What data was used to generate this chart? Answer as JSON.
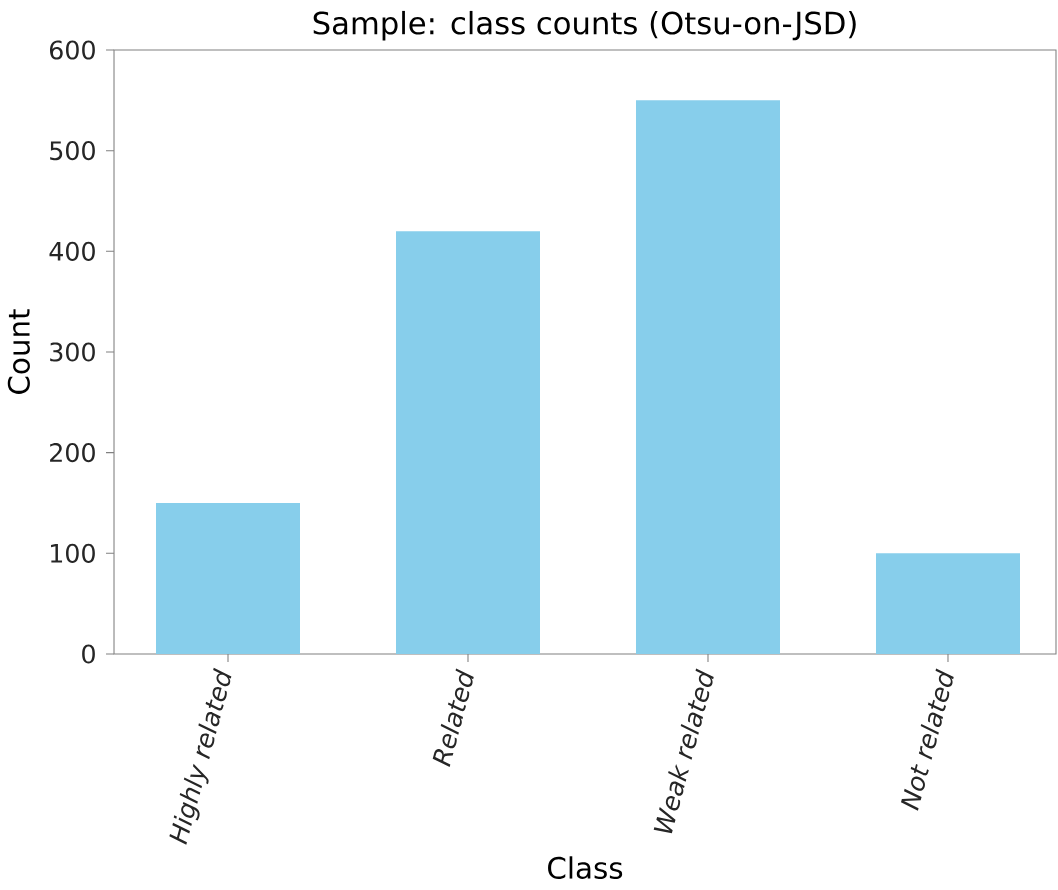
{
  "chart_data": {
    "type": "bar",
    "title": "Sample: class counts (Otsu-on-JSD)",
    "xlabel": "Class",
    "ylabel": "Count",
    "categories": [
      "Highly related",
      "Related",
      "Weak related",
      "Not related"
    ],
    "values": [
      150,
      420,
      550,
      100
    ],
    "color": "#87ceeb",
    "ylim": [
      0,
      600
    ],
    "yticks": [
      0,
      100,
      200,
      300,
      400,
      500,
      600
    ],
    "grid": false
  }
}
